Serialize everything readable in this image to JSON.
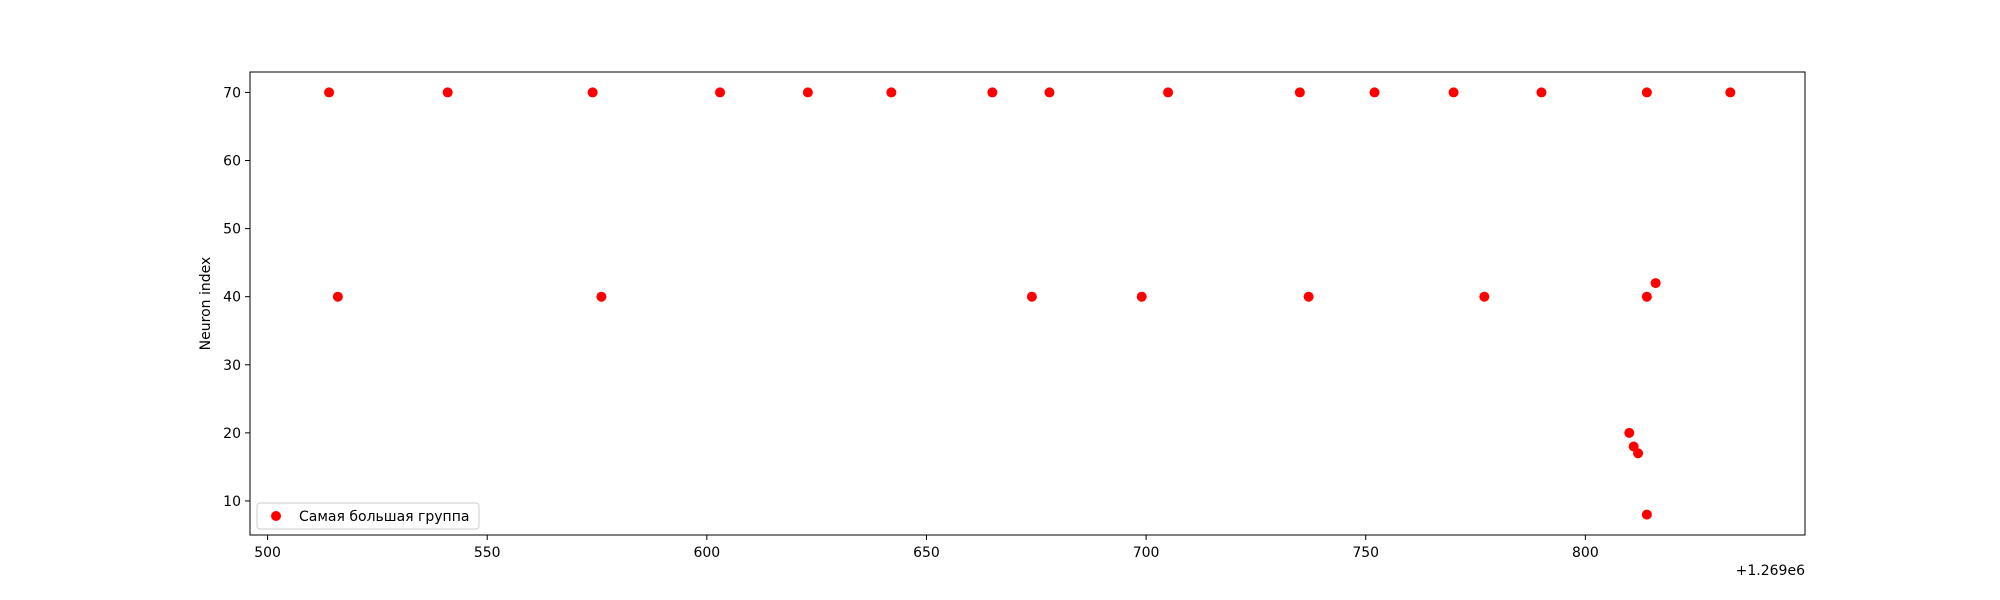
{
  "chart_data": {
    "type": "scatter",
    "ylabel": "Neuron index",
    "xlabel": "",
    "offset_label": "+1.269e6",
    "x_offset": 1269000,
    "xlim": [
      1269496,
      1269850
    ],
    "ylim": [
      5,
      73
    ],
    "x_ticks": [
      500,
      550,
      600,
      650,
      700,
      750,
      800
    ],
    "y_ticks": [
      10,
      20,
      30,
      40,
      50,
      60,
      70
    ],
    "grid": false,
    "legend_position": "lower-left",
    "series": [
      {
        "name": "Самая большая группа",
        "color": "#ff0000",
        "points": [
          [
            1269514,
            70
          ],
          [
            1269541,
            70
          ],
          [
            1269574,
            70
          ],
          [
            1269603,
            70
          ],
          [
            1269623,
            70
          ],
          [
            1269642,
            70
          ],
          [
            1269665,
            70
          ],
          [
            1269678,
            70
          ],
          [
            1269705,
            70
          ],
          [
            1269735,
            70
          ],
          [
            1269752,
            70
          ],
          [
            1269770,
            70
          ],
          [
            1269790,
            70
          ],
          [
            1269814,
            70
          ],
          [
            1269833,
            70
          ],
          [
            1269516,
            40
          ],
          [
            1269576,
            40
          ],
          [
            1269674,
            40
          ],
          [
            1269699,
            40
          ],
          [
            1269737,
            40
          ],
          [
            1269777,
            40
          ],
          [
            1269814,
            40
          ],
          [
            1269816,
            42
          ],
          [
            1269810,
            20
          ],
          [
            1269811,
            18
          ],
          [
            1269812,
            17
          ],
          [
            1269814,
            8
          ]
        ]
      }
    ]
  }
}
